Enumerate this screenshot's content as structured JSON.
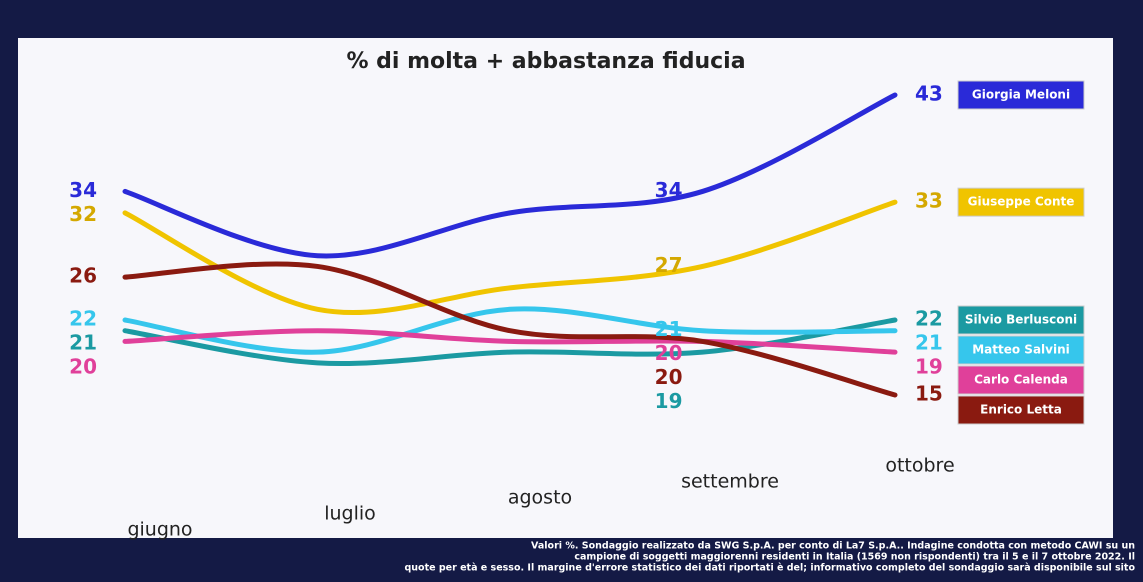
{
  "chart_data": {
    "type": "line",
    "title": "% di molta + abbastanza fiducia",
    "categories": [
      "giugno",
      "luglio",
      "agosto",
      "settembre",
      "ottobre"
    ],
    "labeled_categories": [
      0,
      3,
      4
    ],
    "series": [
      {
        "name": "Giorgia Meloni",
        "color": "#2a2ad8",
        "values": [
          34,
          28,
          32,
          34,
          43
        ]
      },
      {
        "name": "Giuseppe Conte",
        "color": "#f0c400",
        "values": [
          32,
          23,
          25,
          27,
          33
        ]
      },
      {
        "name": "Silvio Berlusconi",
        "color": "#1b9aa2",
        "values": [
          21,
          18,
          19,
          19,
          22
        ]
      },
      {
        "name": "Matteo Salvini",
        "color": "#36c6ec",
        "values": [
          22,
          19,
          23,
          21,
          21
        ]
      },
      {
        "name": "Carlo Calenda",
        "color": "#e0409a",
        "values": [
          20,
          21,
          20,
          20,
          19
        ]
      },
      {
        "name": "Enrico Letta",
        "color": "#8a1a10",
        "values": [
          26,
          27,
          21,
          20,
          15
        ]
      }
    ],
    "footnotes": [
      "Valori %. Sondaggio realizzato da SWG S.p.A. per conto di La7 S.p.A.. Indagine condotta con metodo CAWI su un",
      "campione di soggetti maggiorenni residenti in Italia (1569 non rispondenti) tra il 5 e il 7 ottobre 2022. Il",
      "quote per età e sesso. Il margine d'errore statistico dei dati riportati è del; informativo completo del sondaggio sarà disponibile sul sito"
    ]
  }
}
